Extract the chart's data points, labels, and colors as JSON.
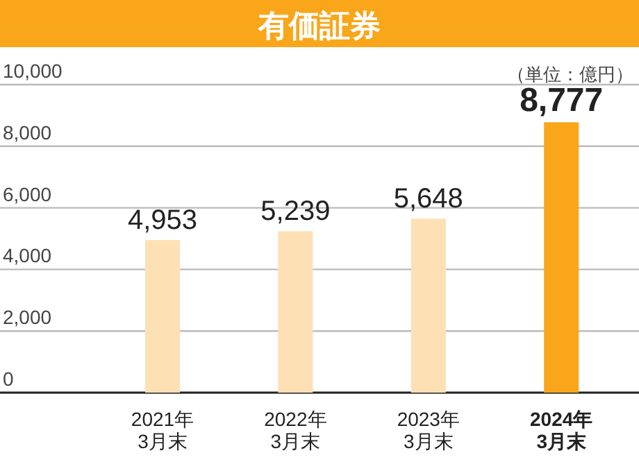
{
  "chart_data": {
    "type": "bar",
    "title": "有価証券",
    "categories": [
      "2021年\n3月末",
      "2022年\n3月末",
      "2023年\n3月末",
      "2024年\n3月末"
    ],
    "values": [
      4953,
      5239,
      5648,
      8777
    ],
    "colors": [
      "#fde0b4",
      "#fde0b4",
      "#fde0b4",
      "#f9a61a"
    ],
    "value_labels": [
      "4,953",
      "5,239",
      "5,648",
      "8,777"
    ],
    "ylim": [
      0,
      10000
    ],
    "yticks": [
      0,
      {
        "value": 2000,
        "label": "2,000"
      },
      {
        "value": 4000,
        "label": "4,000"
      },
      {
        "value": 6000,
        "label": "6,000"
      },
      {
        "value": 8000,
        "label": "8,000"
      },
      {
        "value": 10000,
        "label": "10,000"
      }
    ],
    "grid": "y",
    "annotations": [
      "（単位：億円）"
    ]
  }
}
